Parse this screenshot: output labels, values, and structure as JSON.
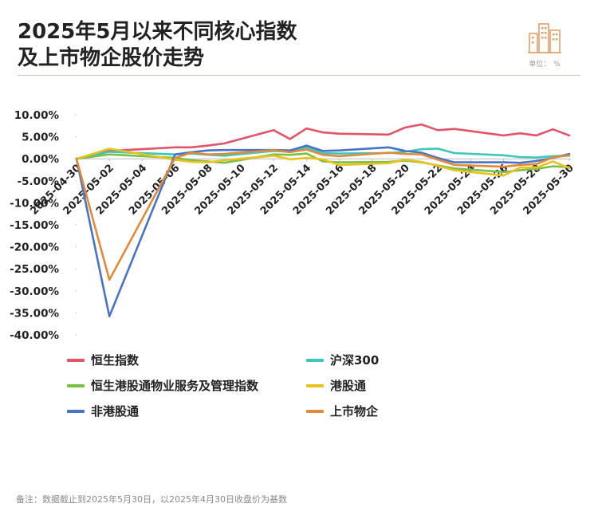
{
  "header": {
    "title_line1": "2025年5月以来不同核心指数",
    "title_line2": "及上市物企股价走势",
    "unit_label": "单位：",
    "unit_value": "%",
    "logo_icon": "building-logo-icon"
  },
  "footnote": "备注：数据截止到2025年5月30日，以2025年4月30日收盘价为基数",
  "chart_data": {
    "type": "line",
    "title": "2025年5月以来不同核心指数及上市物企股价走势",
    "ylim": [
      -40,
      10
    ],
    "yticks": [
      10,
      5,
      0,
      -5,
      -10,
      -15,
      -20,
      -25,
      -30,
      -35,
      -40
    ],
    "ytick_labels": [
      "10.00%",
      "5.00%",
      "0.00%",
      "-5.00%",
      "-10.00%",
      "-15.00%",
      "-20.00%",
      "-25.00%",
      "-30.00%",
      "-35.00%",
      "-40.00%"
    ],
    "x": [
      "2025-04-30",
      "2025-05-02",
      "2025-05-04",
      "2025-05-06",
      "2025-05-07",
      "2025-05-08",
      "2025-05-09",
      "2025-05-12",
      "2025-05-13",
      "2025-05-14",
      "2025-05-15",
      "2025-05-16",
      "2025-05-19",
      "2025-05-20",
      "2025-05-21",
      "2025-05-22",
      "2025-05-23",
      "2025-05-26",
      "2025-05-27",
      "2025-05-28",
      "2025-05-29",
      "2025-05-30"
    ],
    "xtick_labels": [
      "2025-04-30",
      "2025-05-02",
      "2025-05-04",
      "2025-05-06",
      "2025-05-08",
      "2025-05-10",
      "2025-05-12",
      "2025-05-14",
      "2025-05-16",
      "2025-05-18",
      "2025-05-20",
      "2025-05-22",
      "2025-05-24",
      "2025-05-26",
      "2025-05-28",
      "2025-05-30"
    ],
    "legend_position": "bottom",
    "series": [
      {
        "name": "恒生指数",
        "color": "#e05568",
        "points": [
          [
            "2025-04-30",
            0
          ],
          [
            "2025-05-02",
            1.8
          ],
          [
            "2025-05-06",
            2.6
          ],
          [
            "2025-05-07",
            2.6
          ],
          [
            "2025-05-08",
            3.0
          ],
          [
            "2025-05-09",
            3.5
          ],
          [
            "2025-05-12",
            6.5
          ],
          [
            "2025-05-13",
            4.5
          ],
          [
            "2025-05-14",
            6.9
          ],
          [
            "2025-05-15",
            6.0
          ],
          [
            "2025-05-16",
            5.7
          ],
          [
            "2025-05-19",
            5.5
          ],
          [
            "2025-05-20",
            7.1
          ],
          [
            "2025-05-21",
            7.8
          ],
          [
            "2025-05-22",
            6.5
          ],
          [
            "2025-05-23",
            6.8
          ],
          [
            "2025-05-26",
            5.3
          ],
          [
            "2025-05-27",
            5.8
          ],
          [
            "2025-05-28",
            5.3
          ],
          [
            "2025-05-29",
            6.7
          ],
          [
            "2025-05-30",
            5.3
          ]
        ]
      },
      {
        "name": "沪深300",
        "color": "#3dc6bb",
        "points": [
          [
            "2025-04-30",
            0
          ],
          [
            "2025-05-02",
            1.6
          ],
          [
            "2025-05-06",
            1.0
          ],
          [
            "2025-05-07",
            1.2
          ],
          [
            "2025-05-08",
            0.9
          ],
          [
            "2025-05-09",
            0.7
          ],
          [
            "2025-05-12",
            1.8
          ],
          [
            "2025-05-13",
            1.6
          ],
          [
            "2025-05-14",
            2.6
          ],
          [
            "2025-05-15",
            1.3
          ],
          [
            "2025-05-16",
            1.2
          ],
          [
            "2025-05-19",
            1.3
          ],
          [
            "2025-05-20",
            1.6
          ],
          [
            "2025-05-21",
            2.2
          ],
          [
            "2025-05-22",
            2.3
          ],
          [
            "2025-05-23",
            1.3
          ],
          [
            "2025-05-26",
            0.8
          ],
          [
            "2025-05-27",
            0.4
          ],
          [
            "2025-05-28",
            0.3
          ],
          [
            "2025-05-29",
            0.6
          ],
          [
            "2025-05-30",
            0.7
          ]
        ]
      },
      {
        "name": "恒生港股通物业服务及管理指数",
        "color": "#79bf48",
        "points": [
          [
            "2025-04-30",
            0
          ],
          [
            "2025-05-02",
            1.0
          ],
          [
            "2025-05-06",
            0.2
          ],
          [
            "2025-05-07",
            -0.3
          ],
          [
            "2025-05-08",
            -0.6
          ],
          [
            "2025-05-09",
            -0.9
          ],
          [
            "2025-05-12",
            1.0
          ],
          [
            "2025-05-13",
            0.9
          ],
          [
            "2025-05-14",
            1.2
          ],
          [
            "2025-05-15",
            -0.6
          ],
          [
            "2025-05-16",
            -0.8
          ],
          [
            "2025-05-19",
            -0.7
          ],
          [
            "2025-05-20",
            -0.4
          ],
          [
            "2025-05-21",
            -0.8
          ],
          [
            "2025-05-22",
            -1.5
          ],
          [
            "2025-05-23",
            -2.2
          ],
          [
            "2025-05-26",
            -3.0
          ],
          [
            "2025-05-27",
            -2.6
          ],
          [
            "2025-05-28",
            -2.3
          ],
          [
            "2025-05-29",
            -1.7
          ],
          [
            "2025-05-30",
            -1.9
          ]
        ]
      },
      {
        "name": "港股通",
        "color": "#e8c21f",
        "points": [
          [
            "2025-04-30",
            0
          ],
          [
            "2025-05-02",
            2.3
          ],
          [
            "2025-05-06",
            -0.2
          ],
          [
            "2025-05-07",
            -0.7
          ],
          [
            "2025-05-08",
            -0.8
          ],
          [
            "2025-05-09",
            -0.3
          ],
          [
            "2025-05-12",
            0.7
          ],
          [
            "2025-05-13",
            -0.1
          ],
          [
            "2025-05-14",
            0.2
          ],
          [
            "2025-05-15",
            -0.1
          ],
          [
            "2025-05-16",
            -1.4
          ],
          [
            "2025-05-19",
            -1.0
          ],
          [
            "2025-05-20",
            -0.2
          ],
          [
            "2025-05-21",
            -0.7
          ],
          [
            "2025-05-22",
            -1.6
          ],
          [
            "2025-05-23",
            -2.6
          ],
          [
            "2025-05-26",
            -3.8
          ],
          [
            "2025-05-27",
            -2.0
          ],
          [
            "2025-05-28",
            -2.0
          ],
          [
            "2025-05-29",
            -0.6
          ],
          [
            "2025-05-30",
            -2.1
          ]
        ]
      },
      {
        "name": "非港股通",
        "color": "#4a73c4",
        "points": [
          [
            "2025-04-30",
            0
          ],
          [
            "2025-05-02",
            -35.8
          ],
          [
            "2025-05-06",
            1.0
          ],
          [
            "2025-05-07",
            1.5
          ],
          [
            "2025-05-08",
            1.9
          ],
          [
            "2025-05-09",
            2.0
          ],
          [
            "2025-05-12",
            2.0
          ],
          [
            "2025-05-13",
            1.9
          ],
          [
            "2025-05-14",
            3.0
          ],
          [
            "2025-05-15",
            1.8
          ],
          [
            "2025-05-16",
            1.9
          ],
          [
            "2025-05-19",
            2.6
          ],
          [
            "2025-05-20",
            1.8
          ],
          [
            "2025-05-21",
            1.4
          ],
          [
            "2025-05-22",
            0.2
          ],
          [
            "2025-05-23",
            -0.8
          ],
          [
            "2025-05-26",
            -0.8
          ],
          [
            "2025-05-27",
            -0.9
          ],
          [
            "2025-05-28",
            -0.5
          ],
          [
            "2025-05-29",
            0.2
          ],
          [
            "2025-05-30",
            1.1
          ]
        ]
      },
      {
        "name": "上市物企",
        "color": "#e08a3c",
        "points": [
          [
            "2025-04-30",
            0
          ],
          [
            "2025-05-02",
            -27.5
          ],
          [
            "2025-05-06",
            0.2
          ],
          [
            "2025-05-07",
            1.4
          ],
          [
            "2025-05-08",
            1.0
          ],
          [
            "2025-05-09",
            1.1
          ],
          [
            "2025-05-12",
            2.0
          ],
          [
            "2025-05-13",
            1.5
          ],
          [
            "2025-05-14",
            2.1
          ],
          [
            "2025-05-15",
            0.9
          ],
          [
            "2025-05-16",
            0.6
          ],
          [
            "2025-05-19",
            1.4
          ],
          [
            "2025-05-20",
            1.1
          ],
          [
            "2025-05-21",
            1.0
          ],
          [
            "2025-05-22",
            -0.2
          ],
          [
            "2025-05-23",
            -1.4
          ],
          [
            "2025-05-26",
            -1.8
          ],
          [
            "2025-05-27",
            -1.4
          ],
          [
            "2025-05-28",
            -1.2
          ],
          [
            "2025-05-29",
            0.3
          ],
          [
            "2025-05-30",
            0.8
          ]
        ]
      }
    ]
  },
  "legend": [
    {
      "label": "恒生指数",
      "color": "#e05568"
    },
    {
      "label": "沪深300",
      "color": "#3dc6bb"
    },
    {
      "label": "恒生港股通物业服务及管理指数",
      "color": "#79bf48"
    },
    {
      "label": "港股通",
      "color": "#e8c21f"
    },
    {
      "label": "非港股通",
      "color": "#4a73c4"
    },
    {
      "label": "上市物企",
      "color": "#e08a3c"
    }
  ]
}
